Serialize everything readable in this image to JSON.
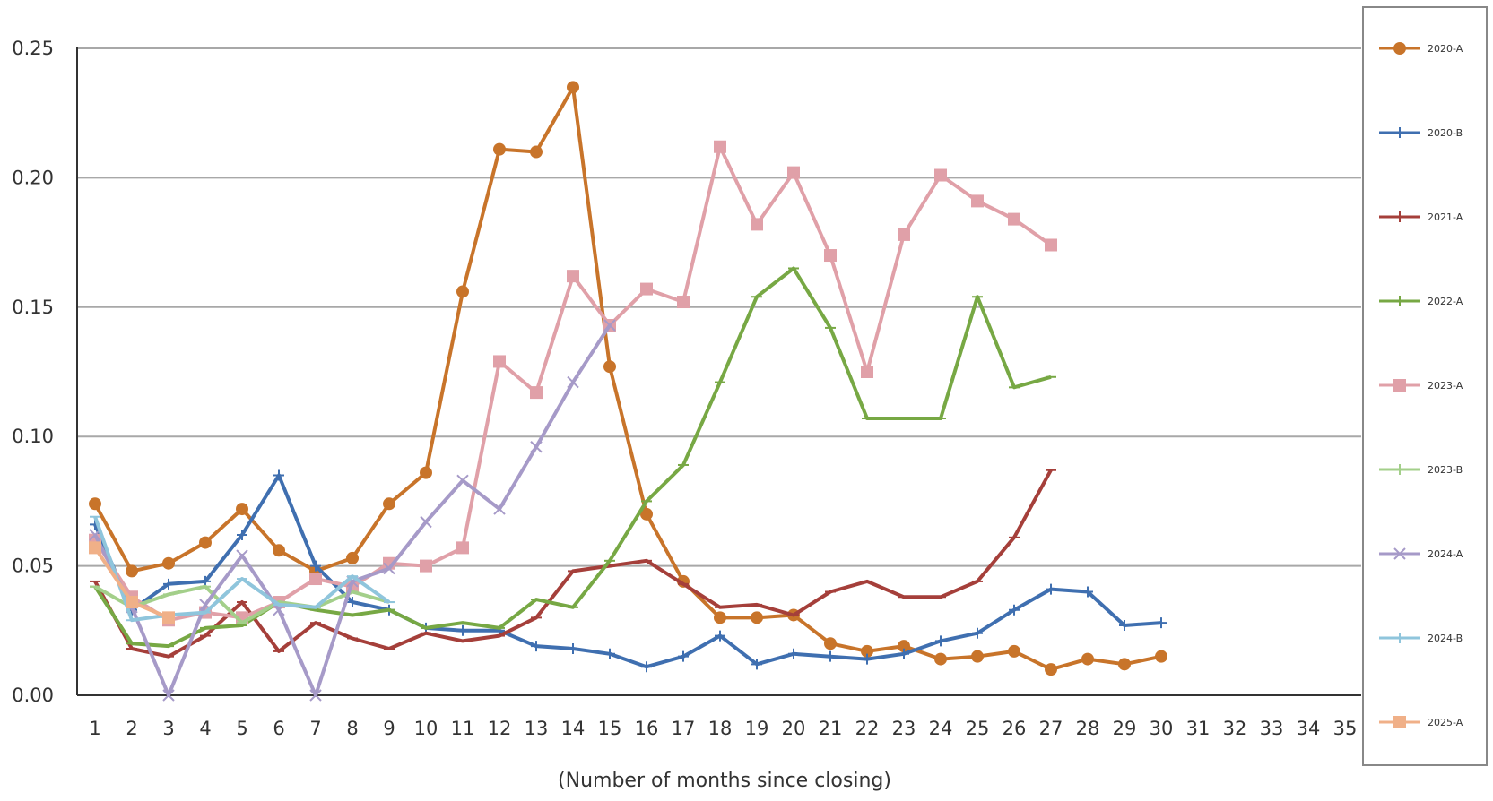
{
  "chart_data": {
    "type": "line",
    "title": "",
    "xlabel": "(Number of months since closing)",
    "ylabel": "",
    "xlim": [
      1,
      35
    ],
    "ylim": [
      0,
      0.25
    ],
    "y_ticks": [
      "0.00",
      "0.05",
      "0.10",
      "0.15",
      "0.20",
      "0.25"
    ],
    "x_ticks": [
      "1",
      "2",
      "3",
      "4",
      "5",
      "6",
      "7",
      "8",
      "9",
      "10",
      "11",
      "12",
      "13",
      "14",
      "15",
      "16",
      "17",
      "18",
      "19",
      "20",
      "21",
      "22",
      "23",
      "24",
      "25",
      "26",
      "27",
      "28",
      "29",
      "30",
      "31",
      "32",
      "33",
      "34",
      "35"
    ],
    "grid": true,
    "legend": "right",
    "series": [
      {
        "name": "2020-A",
        "color": "#c8742a",
        "marker": "circle",
        "values": [
          0.074,
          0.048,
          0.051,
          0.059,
          0.072,
          0.056,
          0.048,
          0.053,
          0.074,
          0.086,
          0.156,
          0.211,
          0.21,
          0.235,
          0.127,
          0.07,
          0.044,
          0.03,
          0.03,
          0.031,
          0.02,
          0.017,
          0.019,
          0.014,
          0.015,
          0.017,
          0.01,
          0.014,
          0.012,
          0.015
        ]
      },
      {
        "name": "2020-B",
        "color": "#3f6fb0",
        "marker": "plus",
        "values": [
          0.066,
          0.033,
          0.043,
          0.044,
          0.062,
          0.085,
          0.05,
          0.036,
          0.033,
          0.026,
          0.025,
          0.025,
          0.019,
          0.018,
          0.016,
          0.011,
          0.015,
          0.023,
          0.012,
          0.016,
          0.015,
          0.014,
          0.016,
          0.021,
          0.024,
          0.033,
          0.041,
          0.04,
          0.027,
          0.028
        ]
      },
      {
        "name": "2021-A",
        "color": "#a53f3a",
        "marker": "dash",
        "values": [
          0.044,
          0.018,
          0.015,
          0.023,
          0.036,
          0.017,
          0.028,
          0.022,
          0.018,
          0.024,
          0.021,
          0.023,
          0.03,
          0.048,
          0.05,
          0.052,
          0.043,
          0.034,
          0.035,
          0.031,
          0.04,
          0.044,
          0.038,
          0.038,
          0.044,
          0.061,
          0.087
        ]
      },
      {
        "name": "2022-A",
        "color": "#77a844",
        "marker": "dash",
        "values": [
          0.042,
          0.02,
          0.019,
          0.026,
          0.027,
          0.036,
          0.033,
          0.031,
          0.033,
          0.026,
          0.028,
          0.026,
          0.037,
          0.034,
          0.052,
          0.075,
          0.089,
          0.121,
          0.154,
          0.165,
          0.142,
          0.107,
          0.107,
          0.107,
          0.154,
          0.119,
          0.123
        ]
      },
      {
        "name": "2023-A",
        "color": "#e0a0a8",
        "marker": "square",
        "values": [
          0.06,
          0.038,
          0.029,
          0.032,
          0.03,
          0.036,
          0.045,
          0.042,
          0.051,
          0.05,
          0.057,
          0.129,
          0.117,
          0.162,
          0.143,
          0.157,
          0.152,
          0.212,
          0.182,
          0.202,
          0.17,
          0.125,
          0.178,
          0.201,
          0.191,
          0.184,
          0.174
        ]
      },
      {
        "name": "2023-B",
        "color": "#a3cf8a",
        "marker": "dash",
        "values": [
          0.042,
          0.034,
          0.039,
          0.042,
          0.028,
          0.036,
          0.034,
          0.04,
          0.036
        ]
      },
      {
        "name": "2024-A",
        "color": "#a69ac8",
        "marker": "cross",
        "values": [
          0.062,
          0.034,
          0.0,
          0.035,
          0.054,
          0.033,
          0.0,
          0.044,
          0.049,
          0.067,
          0.083,
          0.072,
          0.096,
          0.121,
          0.143
        ]
      },
      {
        "name": "2024-B",
        "color": "#8fc5dc",
        "marker": "dash",
        "values": [
          0.069,
          0.029,
          0.031,
          0.032,
          0.045,
          0.035,
          0.034,
          0.046,
          0.036
        ]
      },
      {
        "name": "2025-A",
        "color": "#f0b088",
        "marker": "square",
        "values": [
          0.057,
          0.036,
          0.03
        ]
      }
    ]
  }
}
